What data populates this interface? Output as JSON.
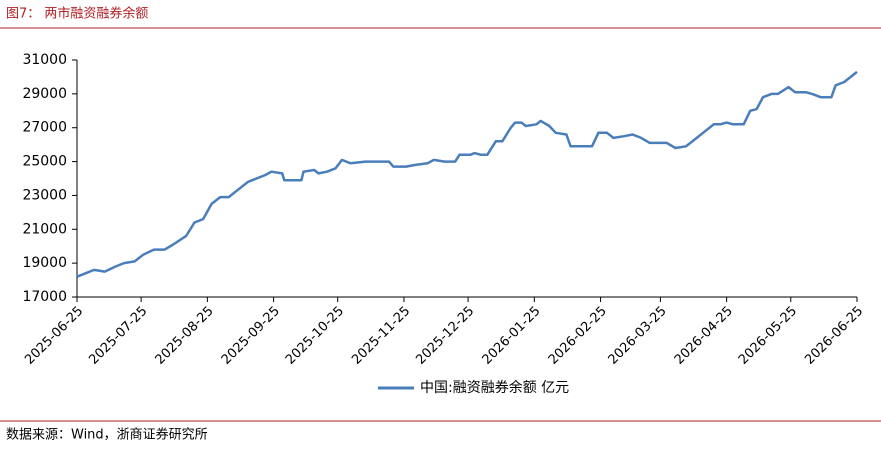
{
  "chart_data": {
    "type": "line",
    "title": "图7：  两市融资融券余额",
    "source": "数据来源：Wind，浙商证券研究所",
    "x": [
      "2025-06-25",
      "2025-06-29",
      "2025-07-03",
      "2025-07-08",
      "2025-07-13",
      "2025-07-17",
      "2025-07-22",
      "2025-07-26",
      "2025-07-31",
      "2025-08-05",
      "2025-08-09",
      "2025-08-15",
      "2025-08-19",
      "2025-08-23",
      "2025-08-27",
      "2025-08-31",
      "2025-09-04",
      "2025-09-08",
      "2025-09-13",
      "2025-09-17",
      "2025-09-21",
      "2025-09-24",
      "2025-09-29",
      "2025-09-30",
      "2025-10-08",
      "2025-10-09",
      "2025-10-14",
      "2025-10-16",
      "2025-10-20",
      "2025-10-24",
      "2025-10-27",
      "2025-10-31",
      "2025-11-07",
      "2025-11-14",
      "2025-11-18",
      "2025-11-20",
      "2025-11-26",
      "2025-11-30",
      "2025-12-06",
      "2025-12-09",
      "2025-12-14",
      "2025-12-19",
      "2025-12-21",
      "2025-12-26",
      "2025-12-28",
      "2025-12-31",
      "2026-01-03",
      "2026-01-07",
      "2026-01-10",
      "2026-01-14",
      "2026-01-16",
      "2026-01-19",
      "2026-01-21",
      "2026-01-26",
      "2026-01-28",
      "2026-02-01",
      "2026-02-04",
      "2026-02-09",
      "2026-02-11",
      "2026-02-21",
      "2026-02-24",
      "2026-02-28",
      "2026-03-03",
      "2026-03-08",
      "2026-03-12",
      "2026-03-16",
      "2026-03-20",
      "2026-03-28",
      "2026-04-01",
      "2026-04-06",
      "2026-04-09",
      "2026-04-14",
      "2026-04-19",
      "2026-04-22",
      "2026-04-25",
      "2026-04-28",
      "2026-05-03",
      "2026-05-06",
      "2026-05-09",
      "2026-05-12",
      "2026-05-16",
      "2026-05-19",
      "2026-05-24",
      "2026-05-27",
      "2026-06-01",
      "2026-06-04",
      "2026-06-08",
      "2026-06-13",
      "2026-06-15",
      "2026-06-19",
      "2026-06-21",
      "2026-06-25"
    ],
    "series": [
      {
        "name": "中国:融资融券余额 亿元",
        "color": "#4a7ebb",
        "values": [
          18200,
          18400,
          18600,
          18500,
          18800,
          19000,
          19100,
          19500,
          19800,
          19800,
          20100,
          20600,
          21400,
          21600,
          22500,
          22900,
          22900,
          23300,
          23800,
          24000,
          24200,
          24400,
          24300,
          23900,
          23900,
          24400,
          24500,
          24300,
          24400,
          24600,
          25100,
          24900,
          25000,
          25000,
          25000,
          24700,
          24700,
          24800,
          24900,
          25100,
          25000,
          25000,
          25400,
          25400,
          25500,
          25400,
          25400,
          26200,
          26200,
          27000,
          27300,
          27300,
          27100,
          27200,
          27400,
          27100,
          26700,
          26600,
          25900,
          25900,
          26700,
          26700,
          26400,
          26500,
          26600,
          26400,
          26100,
          26100,
          25800,
          25900,
          26200,
          26700,
          27200,
          27200,
          27300,
          27200,
          27200,
          28000,
          28100,
          28800,
          29000,
          29000,
          29400,
          29100,
          29100,
          29000,
          28800,
          28800,
          29500,
          29700,
          29900,
          30300
        ]
      }
    ],
    "xlim": [
      "2025-06-25",
      "2026-06-25"
    ],
    "xticks": [
      "2025-06-25",
      "2025-07-25",
      "2025-08-25",
      "2025-09-25",
      "2025-10-25",
      "2025-11-25",
      "2025-12-25",
      "2026-01-25",
      "2026-02-25",
      "2026-03-25",
      "2026-04-25",
      "2026-05-25",
      "2026-06-25"
    ],
    "ylim": [
      17000,
      31000
    ],
    "yticks": [
      17000,
      19000,
      21000,
      23000,
      25000,
      27000,
      29000,
      31000
    ],
    "grid": false
  }
}
